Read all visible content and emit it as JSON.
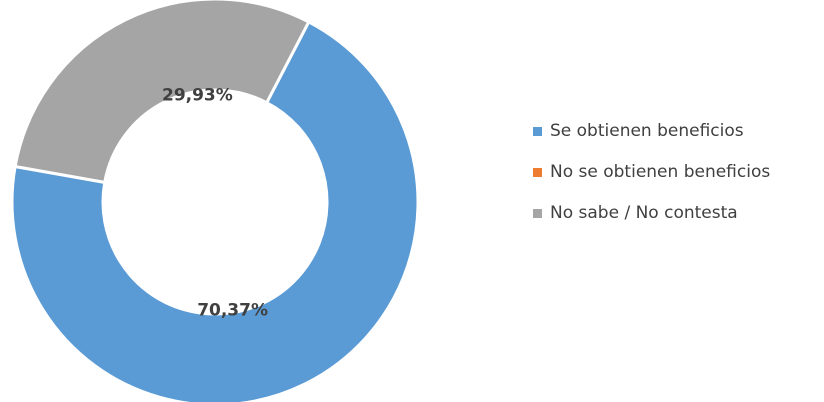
{
  "chart_data": {
    "type": "pie",
    "variant": "donut",
    "title": "",
    "series": [
      {
        "name": "",
        "slices": [
          {
            "label": "Se obtienen beneficios",
            "value": 70.37,
            "value_label": "70,37%",
            "color": "#5b9bd5"
          },
          {
            "label": "No se obtienen beneficios",
            "value": 0,
            "value_label": "",
            "color": "#ed7d31"
          },
          {
            "label": "No sabe / No contesta",
            "value": 29.93,
            "value_label": "29,93%",
            "color": "#a5a5a5"
          }
        ]
      }
    ],
    "legend_position": "right"
  },
  "legend": {
    "items": [
      {
        "label": "Se obtienen beneficios",
        "color": "#5b9bd5"
      },
      {
        "label": "No se obtienen beneficios",
        "color": "#ed7d31"
      },
      {
        "label": "No sabe / No contesta",
        "color": "#a5a5a5"
      }
    ]
  }
}
